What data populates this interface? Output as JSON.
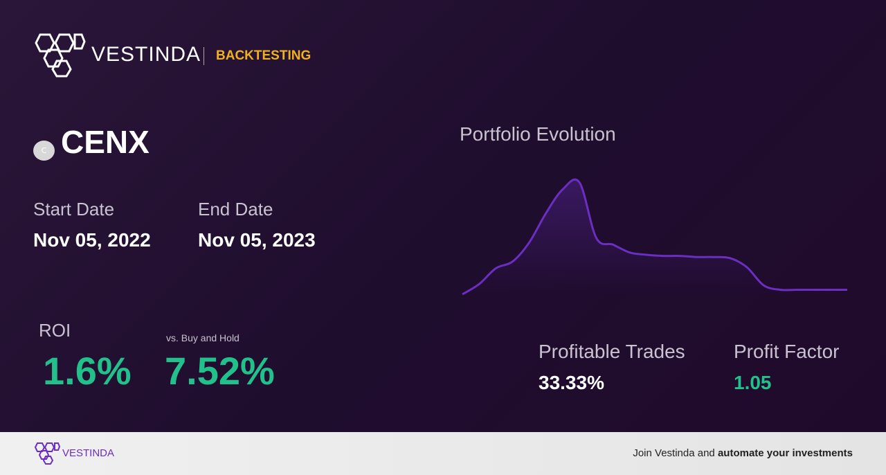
{
  "header": {
    "brand": "VESTINDA",
    "section": "BACKTESTING"
  },
  "asset": {
    "icon": "C",
    "ticker": "CENX"
  },
  "dates": {
    "start_label": "Start Date",
    "start": "Nov 05, 2022",
    "end_label": "End Date",
    "end": "Nov 05, 2023"
  },
  "roi": {
    "label": "ROI",
    "value": "1.6%",
    "compare_label": "vs. Buy and Hold",
    "compare_value": "7.52%"
  },
  "stats": {
    "trades_label": "Profitable Trades",
    "trades_value": "33.33%",
    "factor_label": "Profit Factor",
    "factor_value": "1.05"
  },
  "chart_data": {
    "type": "line",
    "title": "Portfolio Evolution",
    "values": [
      0,
      9,
      23,
      29,
      46,
      72,
      93,
      99,
      50,
      44,
      37,
      35,
      34,
      34,
      33,
      33,
      32,
      24,
      8,
      4,
      4,
      4,
      4,
      4
    ],
    "ylim": [
      0,
      100
    ],
    "color": "#6a2fc0"
  },
  "footer": {
    "brand": "VESTINDA",
    "cta_plain": "Join Vestinda and ",
    "cta_bold": "automate your investments"
  }
}
